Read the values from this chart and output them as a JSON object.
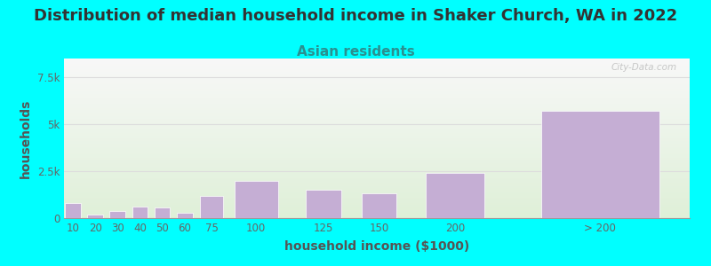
{
  "title": "Distribution of median household income in Shaker Church, WA in 2022",
  "subtitle": "Asian residents",
  "xlabel": "household income ($1000)",
  "ylabel": "households",
  "background_color": "#00FFFF",
  "bar_color": "#c5aed4",
  "bar_edge_color": "#ffffff",
  "categories": [
    "10",
    "20",
    "30",
    "40",
    "50",
    "60",
    "75",
    "100",
    "125",
    "150",
    "200",
    "> 200"
  ],
  "values": [
    800,
    200,
    400,
    600,
    550,
    300,
    1200,
    2000,
    1500,
    1300,
    2400,
    5700
  ],
  "left_edges": [
    5,
    15,
    25,
    35,
    45,
    55,
    65,
    80,
    112,
    137,
    165,
    215
  ],
  "bar_widths": [
    8,
    8,
    8,
    8,
    8,
    8,
    12,
    22,
    18,
    18,
    30,
    60
  ],
  "ylim": [
    0,
    8500
  ],
  "yticks": [
    0,
    2500,
    5000,
    7500
  ],
  "ytick_labels": [
    "0",
    "2.5k",
    "5k",
    "7.5k"
  ],
  "xlim": [
    5,
    285
  ],
  "watermark": "City-Data.com",
  "title_fontsize": 13,
  "subtitle_fontsize": 11,
  "subtitle_color": "#2a9090",
  "axis_label_fontsize": 10,
  "tick_fontsize": 8.5,
  "grid_color": "#dddddd",
  "tick_color": "#666666"
}
